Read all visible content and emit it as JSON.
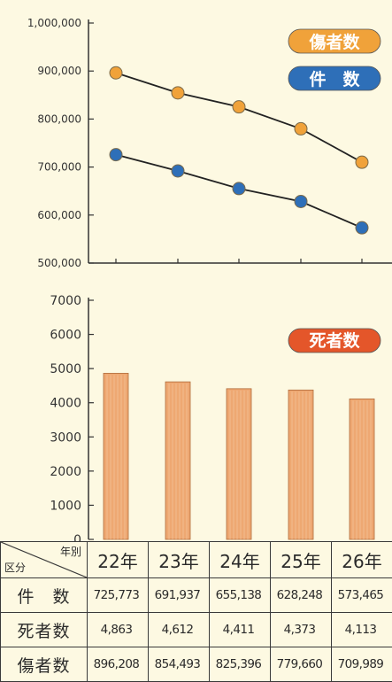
{
  "chart_data": [
    {
      "type": "line",
      "x": [
        "22年",
        "23年",
        "24年",
        "25年",
        "26年"
      ],
      "ylim": [
        500000,
        1000000
      ],
      "yticks": [
        "500,000",
        "600,000",
        "700,000",
        "800,000",
        "900,000",
        "1,000,000"
      ],
      "series": [
        {
          "name": "傷者数",
          "values": [
            896208,
            854493,
            825396,
            779660,
            709989
          ],
          "color": "#f0a23a"
        },
        {
          "name": "件　数",
          "values": [
            725773,
            691937,
            655138,
            628248,
            573465
          ],
          "color": "#2e6fb8"
        }
      ],
      "grid": false,
      "legend": "top-right"
    },
    {
      "type": "bar",
      "categories": [
        "22年",
        "23年",
        "24年",
        "25年",
        "26年"
      ],
      "ylim": [
        0,
        7000
      ],
      "yticks": [
        "0",
        "1000",
        "2000",
        "3000",
        "4000",
        "5000",
        "6000",
        "7000"
      ],
      "series": [
        {
          "name": "死者数",
          "values": [
            4863,
            4612,
            4411,
            4373,
            4113
          ],
          "color": "#eea872"
        }
      ],
      "legend_color": "#e4562a",
      "grid": false,
      "legend": "top-right"
    }
  ],
  "table": {
    "corner_top": "年別",
    "corner_bottom": "区分",
    "years": [
      "22年",
      "23年",
      "24年",
      "25年",
      "26年"
    ],
    "rows": [
      {
        "label": "件　数",
        "values": [
          "725,773",
          "691,937",
          "655,138",
          "628,248",
          "573,465"
        ]
      },
      {
        "label": "死者数",
        "values": [
          "4,863",
          "4,612",
          "4,411",
          "4,373",
          "4,113"
        ]
      },
      {
        "label": "傷者数",
        "values": [
          "896,208",
          "854,493",
          "825,396",
          "779,660",
          "709,989"
        ]
      }
    ]
  }
}
